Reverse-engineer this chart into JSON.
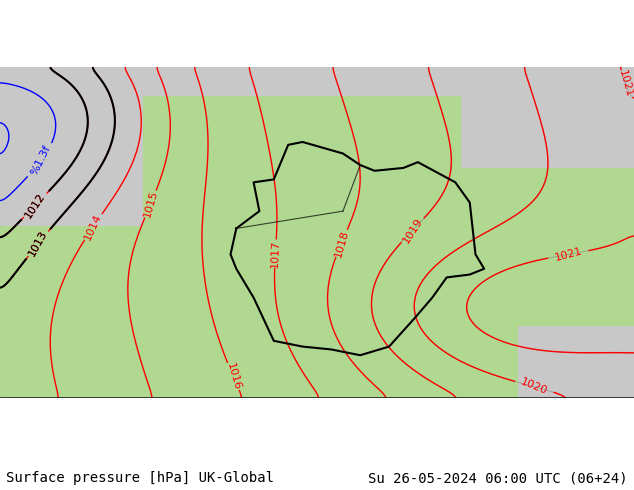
{
  "title_left": "Surface pressure [hPa] UK-Global",
  "title_right": "Su 26-05-2024 06:00 UTC (06+24)",
  "title_fontsize": 10,
  "title_color": "#000000",
  "background_land_color": "#b0d890",
  "background_sea_color": "#d0d0d0",
  "background_gray_color": "#c8c8c8",
  "contour_color_red": "#ff0000",
  "contour_color_black": "#000000",
  "contour_color_blue": "#0000ff",
  "contour_color_gray": "#888888",
  "border_color": "#000000",
  "label_fontsize": 8,
  "fig_width": 6.34,
  "fig_height": 4.9,
  "dpi": 100
}
